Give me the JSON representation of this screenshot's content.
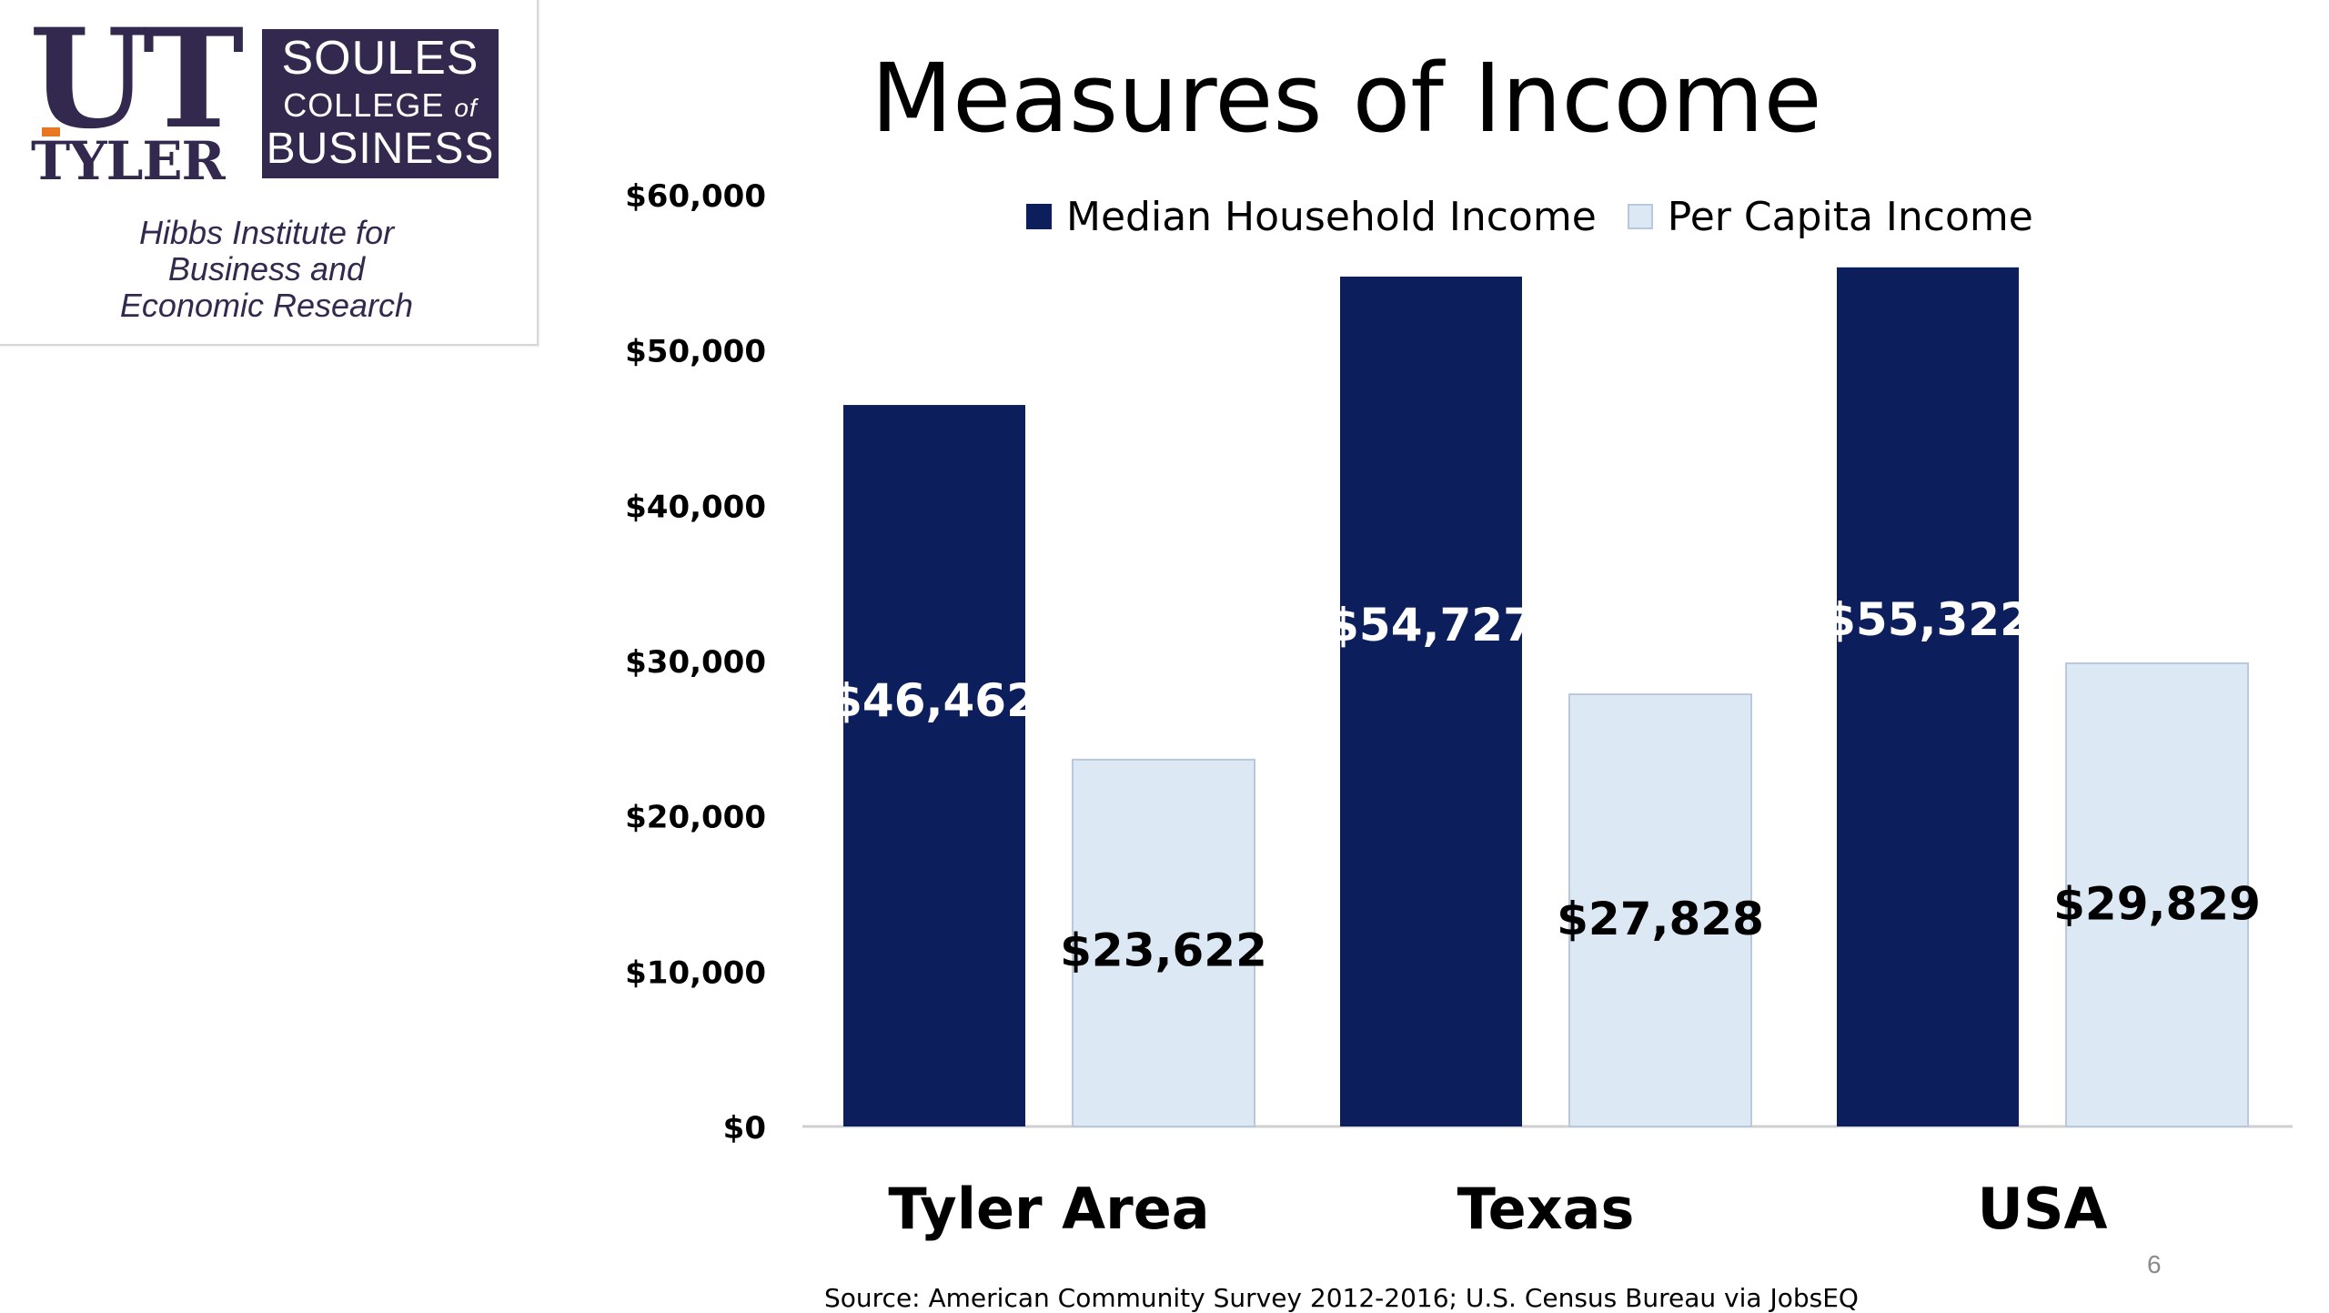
{
  "logo": {
    "ut": "UT",
    "tyler": "TYLER",
    "soules": "SOULES",
    "college": "COLLEGE",
    "of": "of",
    "business": "BUSINESS",
    "hibbs_line1": "Hibbs Institute for",
    "hibbs_line2": "Business and",
    "hibbs_line3": "Economic Research"
  },
  "colors": {
    "median": "#0c1f5c",
    "per_capita": "#dde8f5",
    "logo_purple": "#33294f",
    "logo_orange": "#e87722"
  },
  "chart_data": {
    "type": "bar",
    "title": "Measures of Income",
    "categories": [
      "Tyler Area",
      "Texas",
      "USA"
    ],
    "series": [
      {
        "name": "Median Household Income",
        "values": [
          46462,
          54727,
          55322
        ],
        "labels": [
          "$46,462",
          "$54,727",
          "$55,322"
        ]
      },
      {
        "name": "Per Capita Income",
        "values": [
          23622,
          27828,
          29829
        ],
        "labels": [
          "$23,622",
          "$27,828",
          "$29,829"
        ]
      }
    ],
    "ylim": [
      0,
      60000
    ],
    "yticks": [
      0,
      10000,
      20000,
      30000,
      40000,
      50000,
      60000
    ],
    "ytick_labels": [
      "$0",
      "$10,000",
      "$20,000",
      "$30,000",
      "$40,000",
      "$50,000",
      "$60,000"
    ],
    "grid": false,
    "legend_position": "top"
  },
  "source": "Source: American Community Survey 2012-2016; U.S. Census Bureau via JobsEQ",
  "page_number": "6"
}
